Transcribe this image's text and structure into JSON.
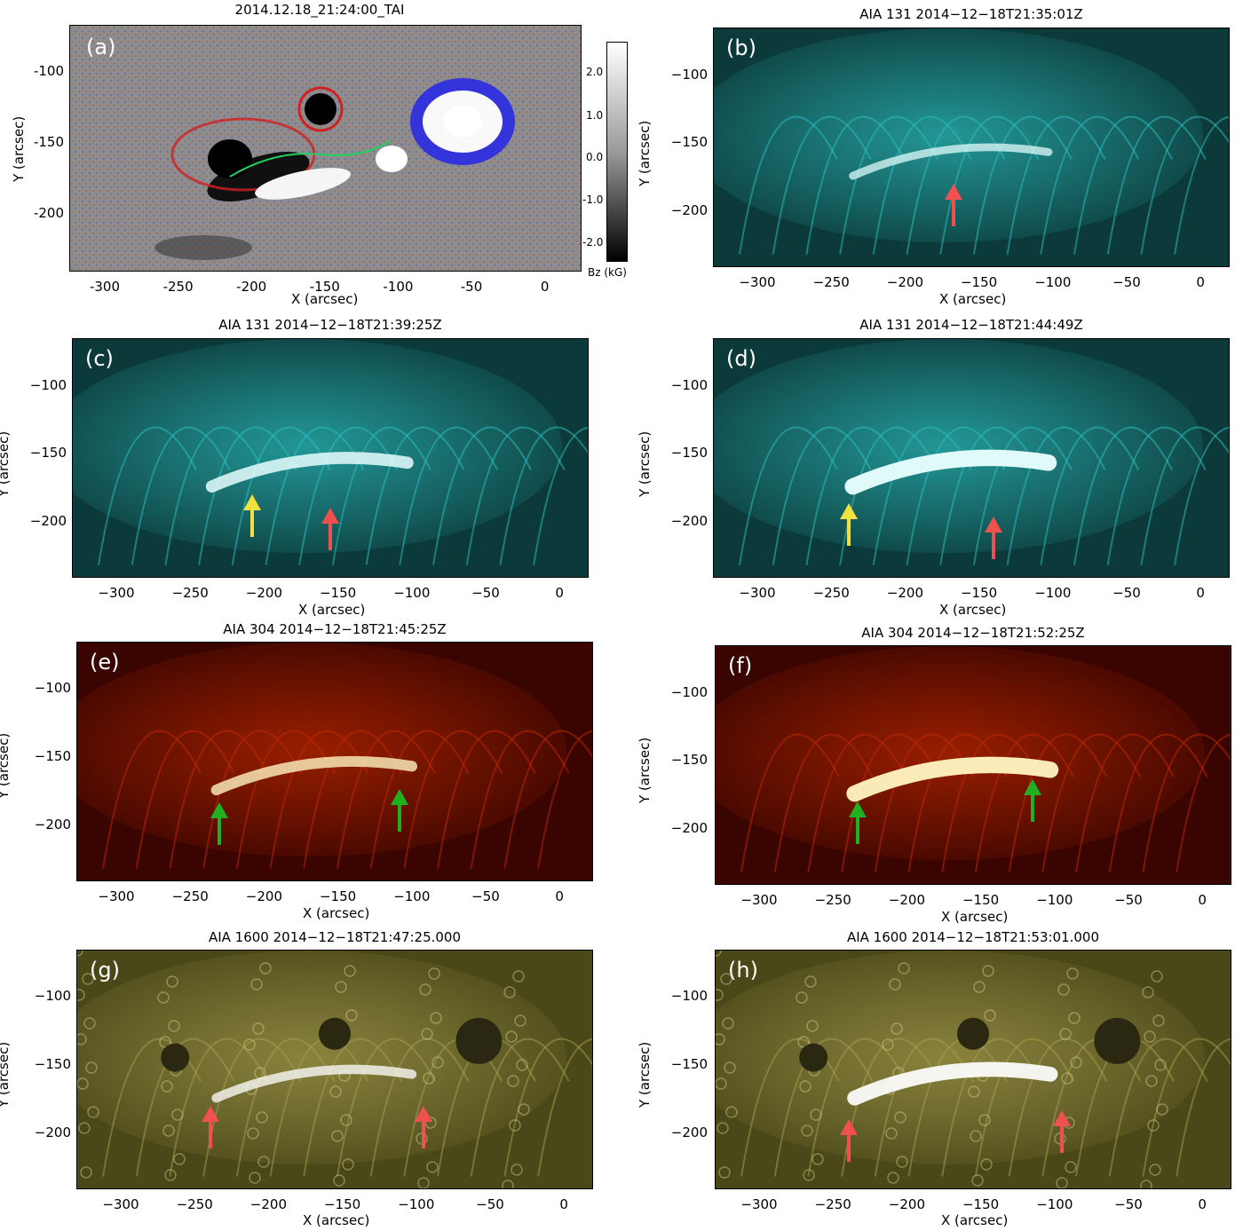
{
  "colors": {
    "aia131": "#2ec2c2",
    "aia304": "#c42a00",
    "aia1600": "#6f6a25",
    "hmi": "#8d8d8d",
    "arrow_red": "#f05050",
    "arrow_yellow": "#f0e040",
    "arrow_green": "#20b020"
  },
  "panels": [
    {
      "id": "a",
      "label": "(a)",
      "title": "2014.12.18_21:24:00_TAI",
      "xlabel": "X (arcsec)",
      "ylabel": "Y (arcsec)",
      "xticks": [
        "-300",
        "-250",
        "-200",
        "-150",
        "-100",
        "-50",
        "0"
      ],
      "yticks": [
        "-100",
        "-150",
        "-200"
      ],
      "colorbar": {
        "ticks": [
          "2.0",
          "1.0",
          "0.0",
          "-1.0",
          "-2.0"
        ],
        "label": "Bz (kG)"
      }
    },
    {
      "id": "b",
      "label": "(b)",
      "title": "AIA 131 2014−12−18T21:35:01Z",
      "xlabel": "X (arcsec)",
      "ylabel": "Y (arcsec)",
      "xticks": [
        "−300",
        "−250",
        "−200",
        "−150",
        "−100",
        "−50",
        "0"
      ],
      "yticks": [
        "−100",
        "−150",
        "−200"
      ],
      "arrows": [
        "red"
      ]
    },
    {
      "id": "c",
      "label": "(c)",
      "title": "AIA 131 2014−12−18T21:39:25Z",
      "xlabel": "X (arcsec)",
      "ylabel": "Y (arcsec)",
      "xticks": [
        "−300",
        "−250",
        "−200",
        "−150",
        "−100",
        "−50",
        "0"
      ],
      "yticks": [
        "−100",
        "−150",
        "−200"
      ],
      "arrows": [
        "yellow",
        "red"
      ]
    },
    {
      "id": "d",
      "label": "(d)",
      "title": "AIA 131 2014−12−18T21:44:49Z",
      "xlabel": "X (arcsec)",
      "ylabel": "Y (arcsec)",
      "xticks": [
        "−300",
        "−250",
        "−200",
        "−150",
        "−100",
        "−50",
        "0"
      ],
      "yticks": [
        "−100",
        "−150",
        "−200"
      ],
      "arrows": [
        "yellow",
        "red"
      ]
    },
    {
      "id": "e",
      "label": "(e)",
      "title": "AIA 304 2014−12−18T21:45:25Z",
      "xlabel": "X (arcsec)",
      "ylabel": "Y (arcsec)",
      "xticks": [
        "−300",
        "−250",
        "−200",
        "−150",
        "−100",
        "−50",
        "0"
      ],
      "yticks": [
        "−100",
        "−150",
        "−200"
      ],
      "arrows": [
        "green",
        "green"
      ]
    },
    {
      "id": "f",
      "label": "(f)",
      "title": "AIA 304 2014−12−18T21:52:25Z",
      "xlabel": "X (arcsec)",
      "ylabel": "Y (arcsec)",
      "xticks": [
        "−300",
        "−250",
        "−200",
        "−150",
        "−100",
        "−50",
        "0"
      ],
      "yticks": [
        "−100",
        "−150",
        "−200"
      ],
      "arrows": [
        "green",
        "green"
      ]
    },
    {
      "id": "g",
      "label": "(g)",
      "title": "AIA 1600 2014−12−18T21:47:25.000",
      "xlabel": "X (arcsec)",
      "ylabel": "Y (arcsec)",
      "xticks": [
        "−300",
        "−250",
        "−200",
        "−150",
        "−100",
        "−50",
        "0"
      ],
      "yticks": [
        "−100",
        "−150",
        "−200"
      ],
      "arrows": [
        "red",
        "red"
      ]
    },
    {
      "id": "h",
      "label": "(h)",
      "title": "AIA 1600 2014−12−18T21:53:01.000",
      "xlabel": "X (arcsec)",
      "ylabel": "Y (arcsec)",
      "xticks": [
        "−300",
        "−250",
        "−200",
        "−150",
        "−100",
        "−50",
        "0"
      ],
      "yticks": [
        "−100",
        "−150",
        "−200"
      ],
      "arrows": [
        "red",
        "red"
      ]
    }
  ]
}
